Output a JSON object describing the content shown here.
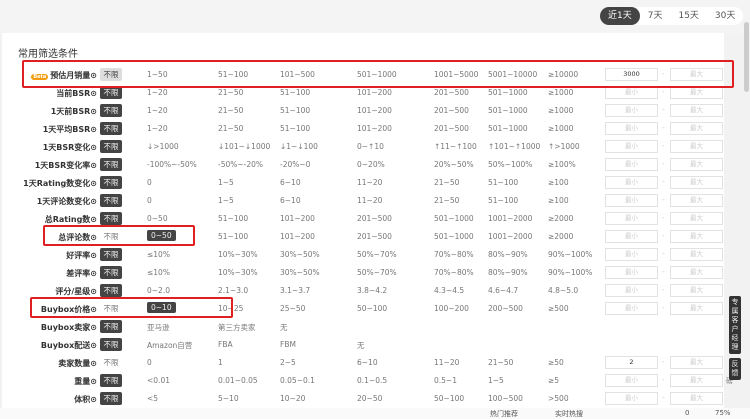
{
  "time_tabs": [
    {
      "label": "近1天",
      "active": true
    },
    {
      "label": "7天"
    },
    {
      "label": "15天"
    },
    {
      "label": "30天"
    }
  ],
  "section_title": "常用筛选条件",
  "beta_badge": "Beta",
  "unlimited_label": "不限",
  "min_placeholder": "最小",
  "max_placeholder": "最大",
  "rows": [
    {
      "label": "预估月销量⊙",
      "unl": "light",
      "options": [
        "1~50",
        "51~100",
        "101~500",
        "501~1000",
        "1001~5000",
        "5001~10000",
        "≥10000"
      ],
      "min": "3000",
      "beta": true
    },
    {
      "label": "当前BSR⊙",
      "unl": "on",
      "options": [
        "1~20",
        "21~50",
        "51~100",
        "101~200",
        "201~500",
        "501~1000",
        "≥1000"
      ]
    },
    {
      "label": "1天前BSR⊙",
      "unl": "on",
      "options": [
        "1~20",
        "21~50",
        "51~100",
        "101~200",
        "201~500",
        "501~1000",
        "≥1000"
      ]
    },
    {
      "label": "1天平均BSR⊙",
      "unl": "on",
      "options": [
        "1~20",
        "21~50",
        "51~100",
        "101~200",
        "201~500",
        "501~1000",
        "≥1000"
      ]
    },
    {
      "label": "1天BSR变化⊙",
      "unl": "on",
      "options": [
        "↓>1000",
        "↓101~↓1000",
        "↓1~↓100",
        "0~↑10",
        "↑11~↑100",
        "↑101~↑1000",
        "↑>1000"
      ]
    },
    {
      "label": "1天BSR变化率⊙",
      "unl": "on",
      "options": [
        "-100%~-50%",
        "-50%~-20%",
        "-20%~0",
        "0~20%",
        "20%~50%",
        "50%~100%",
        "≥100%"
      ]
    },
    {
      "label": "1天Rating数变化⊙",
      "unl": "on",
      "options": [
        "0",
        "1~5",
        "6~10",
        "11~20",
        "21~50",
        "51~100",
        "≥100"
      ]
    },
    {
      "label": "1天评论数变化⊙",
      "unl": "on",
      "options": [
        "0",
        "1~5",
        "6~10",
        "11~20",
        "21~50",
        "51~100",
        "≥100"
      ]
    },
    {
      "label": "总Rating数⊙",
      "unl": "on",
      "options": [
        "0~50",
        "51~100",
        "101~200",
        "201~500",
        "501~1000",
        "1001~2000",
        "≥2000"
      ]
    },
    {
      "label": "总评论数⊙",
      "unl": "off",
      "options": [
        "0~50",
        "51~100",
        "101~200",
        "201~500",
        "501~1000",
        "1001~2000",
        "≥2000"
      ],
      "sel": 0
    },
    {
      "label": "好评率⊙",
      "unl": "on",
      "options": [
        "≤10%",
        "10%~30%",
        "30%~50%",
        "50%~70%",
        "70%~80%",
        "80%~90%",
        "90%~100%"
      ]
    },
    {
      "label": "差评率⊙",
      "unl": "on",
      "options": [
        "≤10%",
        "10%~30%",
        "30%~50%",
        "50%~70%",
        "70%~80%",
        "80%~90%",
        "90%~100%"
      ]
    },
    {
      "label": "评分/星级⊙",
      "unl": "on",
      "options": [
        "0~2.0",
        "2.1~3.0",
        "3.1~3.7",
        "3.8~4.2",
        "4.3~4.5",
        "4.6~4.7",
        "4.8~5.0"
      ]
    },
    {
      "label": "Buybox价格⊙",
      "unl": "off",
      "options": [
        "0~10",
        "10~25",
        "25~50",
        "50~100",
        "100~200",
        "200~500",
        "≥500"
      ],
      "sel": 0
    },
    {
      "label": "Buybox卖家⊙",
      "unl": "on",
      "options": [
        "亚马逊",
        "第三方卖家",
        "无"
      ],
      "noinput": true
    },
    {
      "label": "Buybox配送⊙",
      "unl": "on",
      "options": [
        "Amazon自营",
        "FBA",
        "FBM",
        "无"
      ],
      "noinput": true
    },
    {
      "label": "卖家数量⊙",
      "unl": "off",
      "options": [
        "0",
        "1",
        "2~5",
        "6~10",
        "11~20",
        "21~50",
        "≥50"
      ],
      "min": "2"
    },
    {
      "label": "重量⊙",
      "unl": "on",
      "options": [
        "<0.01",
        "0.01~0.05",
        "0.05~0.1",
        "0.1~0.5",
        "0.5~1",
        "1~5",
        "≥5"
      ],
      "unit": "磅"
    },
    {
      "label": "体积⊙",
      "unl": "on",
      "options": [
        "<5",
        "5~10",
        "10~20",
        "20~50",
        "50~100",
        "100~500",
        ">500"
      ]
    }
  ],
  "side_buttons": {
    "account_manager": "专属客户经理",
    "feedback": "反馈"
  },
  "bottom_bar": [
    "热门推荐",
    "实时热搜",
    "0",
    "75%"
  ]
}
